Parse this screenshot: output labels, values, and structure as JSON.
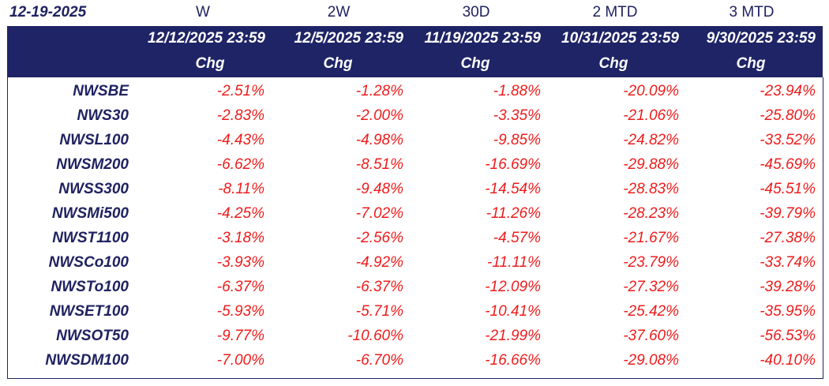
{
  "header": {
    "date": "12-19-2025",
    "periods": [
      "W",
      "2W",
      "30D",
      "2 MTD",
      "3 MTD"
    ],
    "dates": [
      "12/12/2025 23:59",
      "12/5/2025 23:59",
      "11/19/2025 23:59",
      "10/31/2025 23:59",
      "9/30/2025 23:59"
    ],
    "chg": [
      "Chg",
      "Chg",
      "Chg",
      "Chg",
      "Chg"
    ]
  },
  "rows": [
    {
      "name": "NWSBE",
      "vals": [
        "-2.51%",
        "-1.28%",
        "-1.88%",
        "-20.09%",
        "-23.94%"
      ]
    },
    {
      "name": "NWS30",
      "vals": [
        "-2.83%",
        "-2.00%",
        "-3.35%",
        "-21.06%",
        "-25.80%"
      ]
    },
    {
      "name": "NWSL100",
      "vals": [
        "-4.43%",
        "-4.98%",
        "-9.85%",
        "-24.82%",
        "-33.52%"
      ]
    },
    {
      "name": "NWSM200",
      "vals": [
        "-6.62%",
        "-8.51%",
        "-16.69%",
        "-29.88%",
        "-45.69%"
      ]
    },
    {
      "name": "NWSS300",
      "vals": [
        "-8.11%",
        "-9.48%",
        "-14.54%",
        "-28.83%",
        "-45.51%"
      ]
    },
    {
      "name": "NWSMi500",
      "vals": [
        "-4.25%",
        "-7.02%",
        "-11.26%",
        "-28.23%",
        "-39.79%"
      ]
    },
    {
      "name": "NWST1100",
      "vals": [
        "-3.18%",
        "-2.56%",
        "-4.57%",
        "-21.67%",
        "-27.38%"
      ]
    },
    {
      "name": "NWSCo100",
      "vals": [
        "-3.93%",
        "-4.92%",
        "-11.11%",
        "-23.79%",
        "-33.74%"
      ]
    },
    {
      "name": "NWSTo100",
      "vals": [
        "-6.37%",
        "-6.37%",
        "-12.09%",
        "-27.32%",
        "-39.28%"
      ]
    },
    {
      "name": "NWSET100",
      "vals": [
        "-5.93%",
        "-5.71%",
        "-10.41%",
        "-25.42%",
        "-35.95%"
      ]
    },
    {
      "name": "NWSOT50",
      "vals": [
        "-9.77%",
        "-10.60%",
        "-21.99%",
        "-37.60%",
        "-56.53%"
      ]
    },
    {
      "name": "NWSDM100",
      "vals": [
        "-7.00%",
        "-6.70%",
        "-16.66%",
        "-29.08%",
        "-40.10%"
      ]
    }
  ],
  "colors": {
    "header_bg": "#1e2466",
    "header_text": "#ffffff",
    "label_text": "#1f2260",
    "value_text": "#ee1c1c"
  }
}
